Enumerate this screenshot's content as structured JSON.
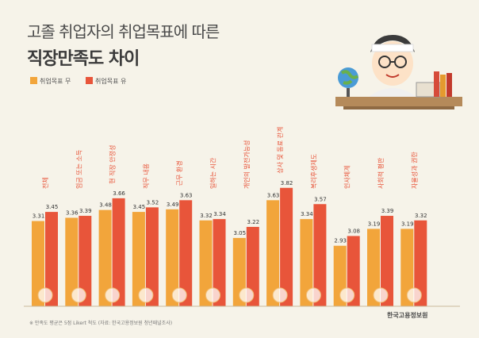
{
  "title_line1": "고졸 취업자의 취업목표에 따른",
  "title_line2": "직장만족도 차이",
  "footnote": "※ 만족도 평균은 5점 Likert 척도 (자료: 한국고용정보원 청년패널조사)",
  "org_name": "한국고용정보원",
  "icons": [
    "won-coins-icon",
    "won-coin-icon",
    "building-icon",
    "folder-icon",
    "tools-icon",
    "clock-icon",
    "pencil-paper-icon",
    "people-icon",
    "heart-hand-icon",
    "handshake-icon",
    "megaphone-icon",
    "pointer-icon"
  ],
  "chart_data": {
    "type": "bar",
    "title": "고졸 취업자의 취업목표에 따른 직장만족도 차이",
    "categories": [
      "전체",
      "임금 또는 소득",
      "현 직장 안정성",
      "직무 내용",
      "근무 환경",
      "일하는 시간",
      "개인의 발전가능성",
      "상사 및 동료 관계",
      "복리후생제도",
      "인사체계",
      "사회적 평판",
      "자율성과 권한"
    ],
    "series": [
      {
        "name": "취업목표 무",
        "color": "#f2a53b",
        "values": [
          3.31,
          3.36,
          3.48,
          3.45,
          3.49,
          3.32,
          3.05,
          3.63,
          3.34,
          2.93,
          3.19,
          3.19
        ]
      },
      {
        "name": "취업목표 유",
        "color": "#e8553a",
        "values": [
          3.45,
          3.39,
          3.66,
          3.52,
          3.63,
          3.34,
          3.22,
          3.82,
          3.57,
          3.08,
          3.39,
          3.32
        ]
      }
    ],
    "value_labels": [
      [
        "3.31",
        "3.36",
        "3.48",
        "3.45",
        "3.49",
        "3.32",
        "3.05",
        "3.63",
        "3.34",
        "2.93",
        "3.19",
        "3.19"
      ],
      [
        "3.45",
        "3.39",
        "3.66",
        "3.52",
        "3.63",
        "3.34",
        "3.22",
        "3.82",
        "3.57",
        "3.08",
        "3.39",
        "3.32"
      ]
    ],
    "legend_position": "top-left",
    "grid": false
  }
}
